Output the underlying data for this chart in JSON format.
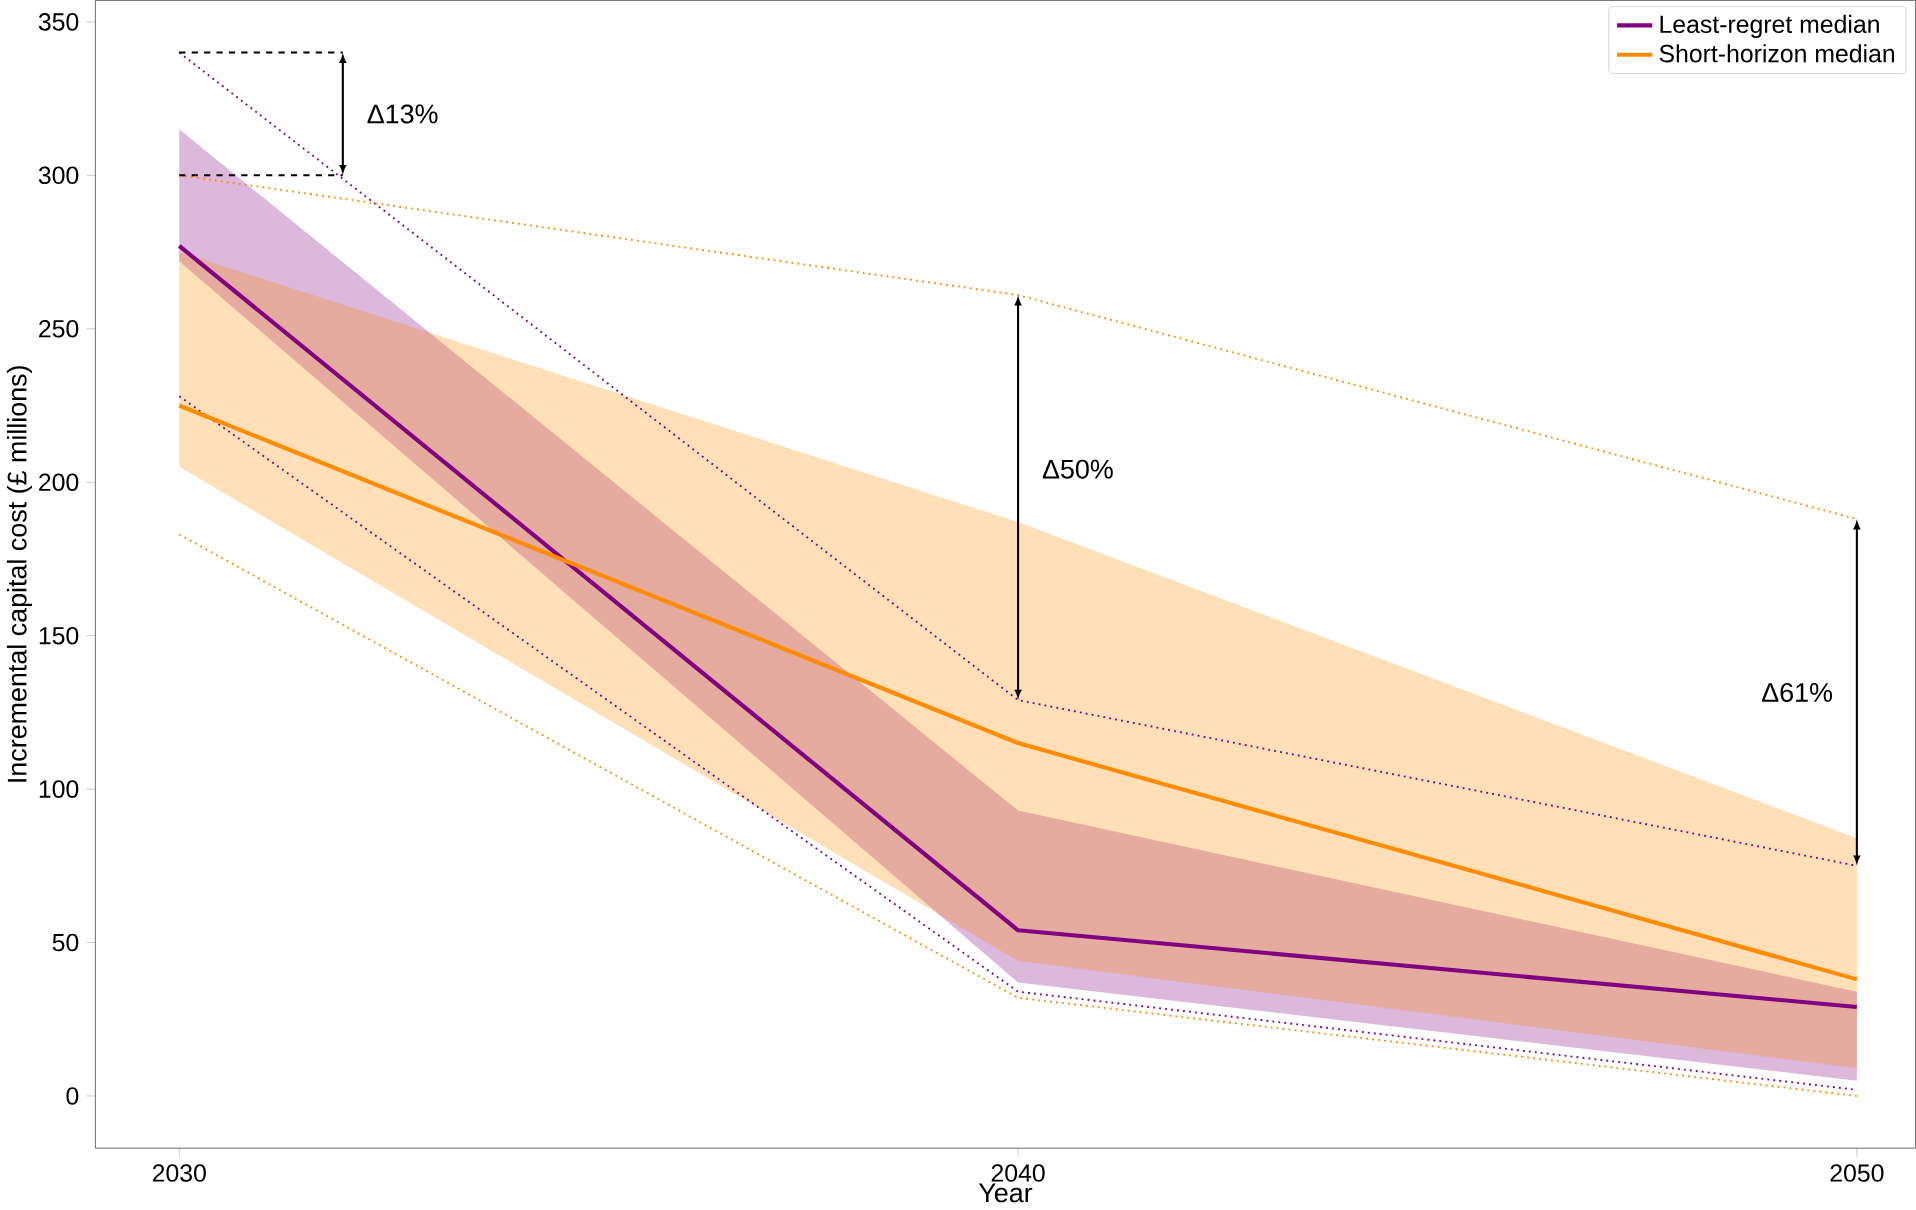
{
  "chart_data": {
    "type": "line",
    "xlabel": "Year",
    "ylabel": "Incremental capital cost (£ millions)",
    "x": [
      2030,
      2040,
      2050
    ],
    "xlim": [
      2029,
      2050.7
    ],
    "xticks": [
      2030,
      2040,
      2050
    ],
    "ylim": [
      -17,
      357
    ],
    "yticks": [
      0,
      50,
      100,
      150,
      200,
      250,
      300,
      350
    ],
    "legend": "top right",
    "series": [
      {
        "name": "Least-regret median",
        "color": "#800080",
        "line_style": "solid",
        "values": [
          277,
          54,
          29
        ],
        "lower": [
          272,
          37,
          5
        ],
        "upper": [
          315,
          93,
          34
        ]
      },
      {
        "name": "Short-horizon median",
        "color": "#ff8c00",
        "line_style": "solid",
        "values": [
          225,
          115,
          38
        ],
        "lower": [
          205,
          44,
          9
        ],
        "upper": [
          275,
          187,
          84
        ]
      },
      {
        "color": "#800080",
        "line_style": "dotted",
        "values": [
          340,
          129,
          75
        ]
      },
      {
        "color": "#800080",
        "line_style": "dotted",
        "values": [
          228,
          34,
          2
        ]
      },
      {
        "color": "#ff8c00",
        "line_style": "dotted",
        "values": [
          300,
          261,
          188
        ]
      },
      {
        "color": "#ff8c00",
        "line_style": "dotted",
        "values": [
          183,
          32,
          0
        ]
      }
    ],
    "annotations": [
      "Δ13%",
      "Δ50%",
      "Δ61%"
    ]
  }
}
